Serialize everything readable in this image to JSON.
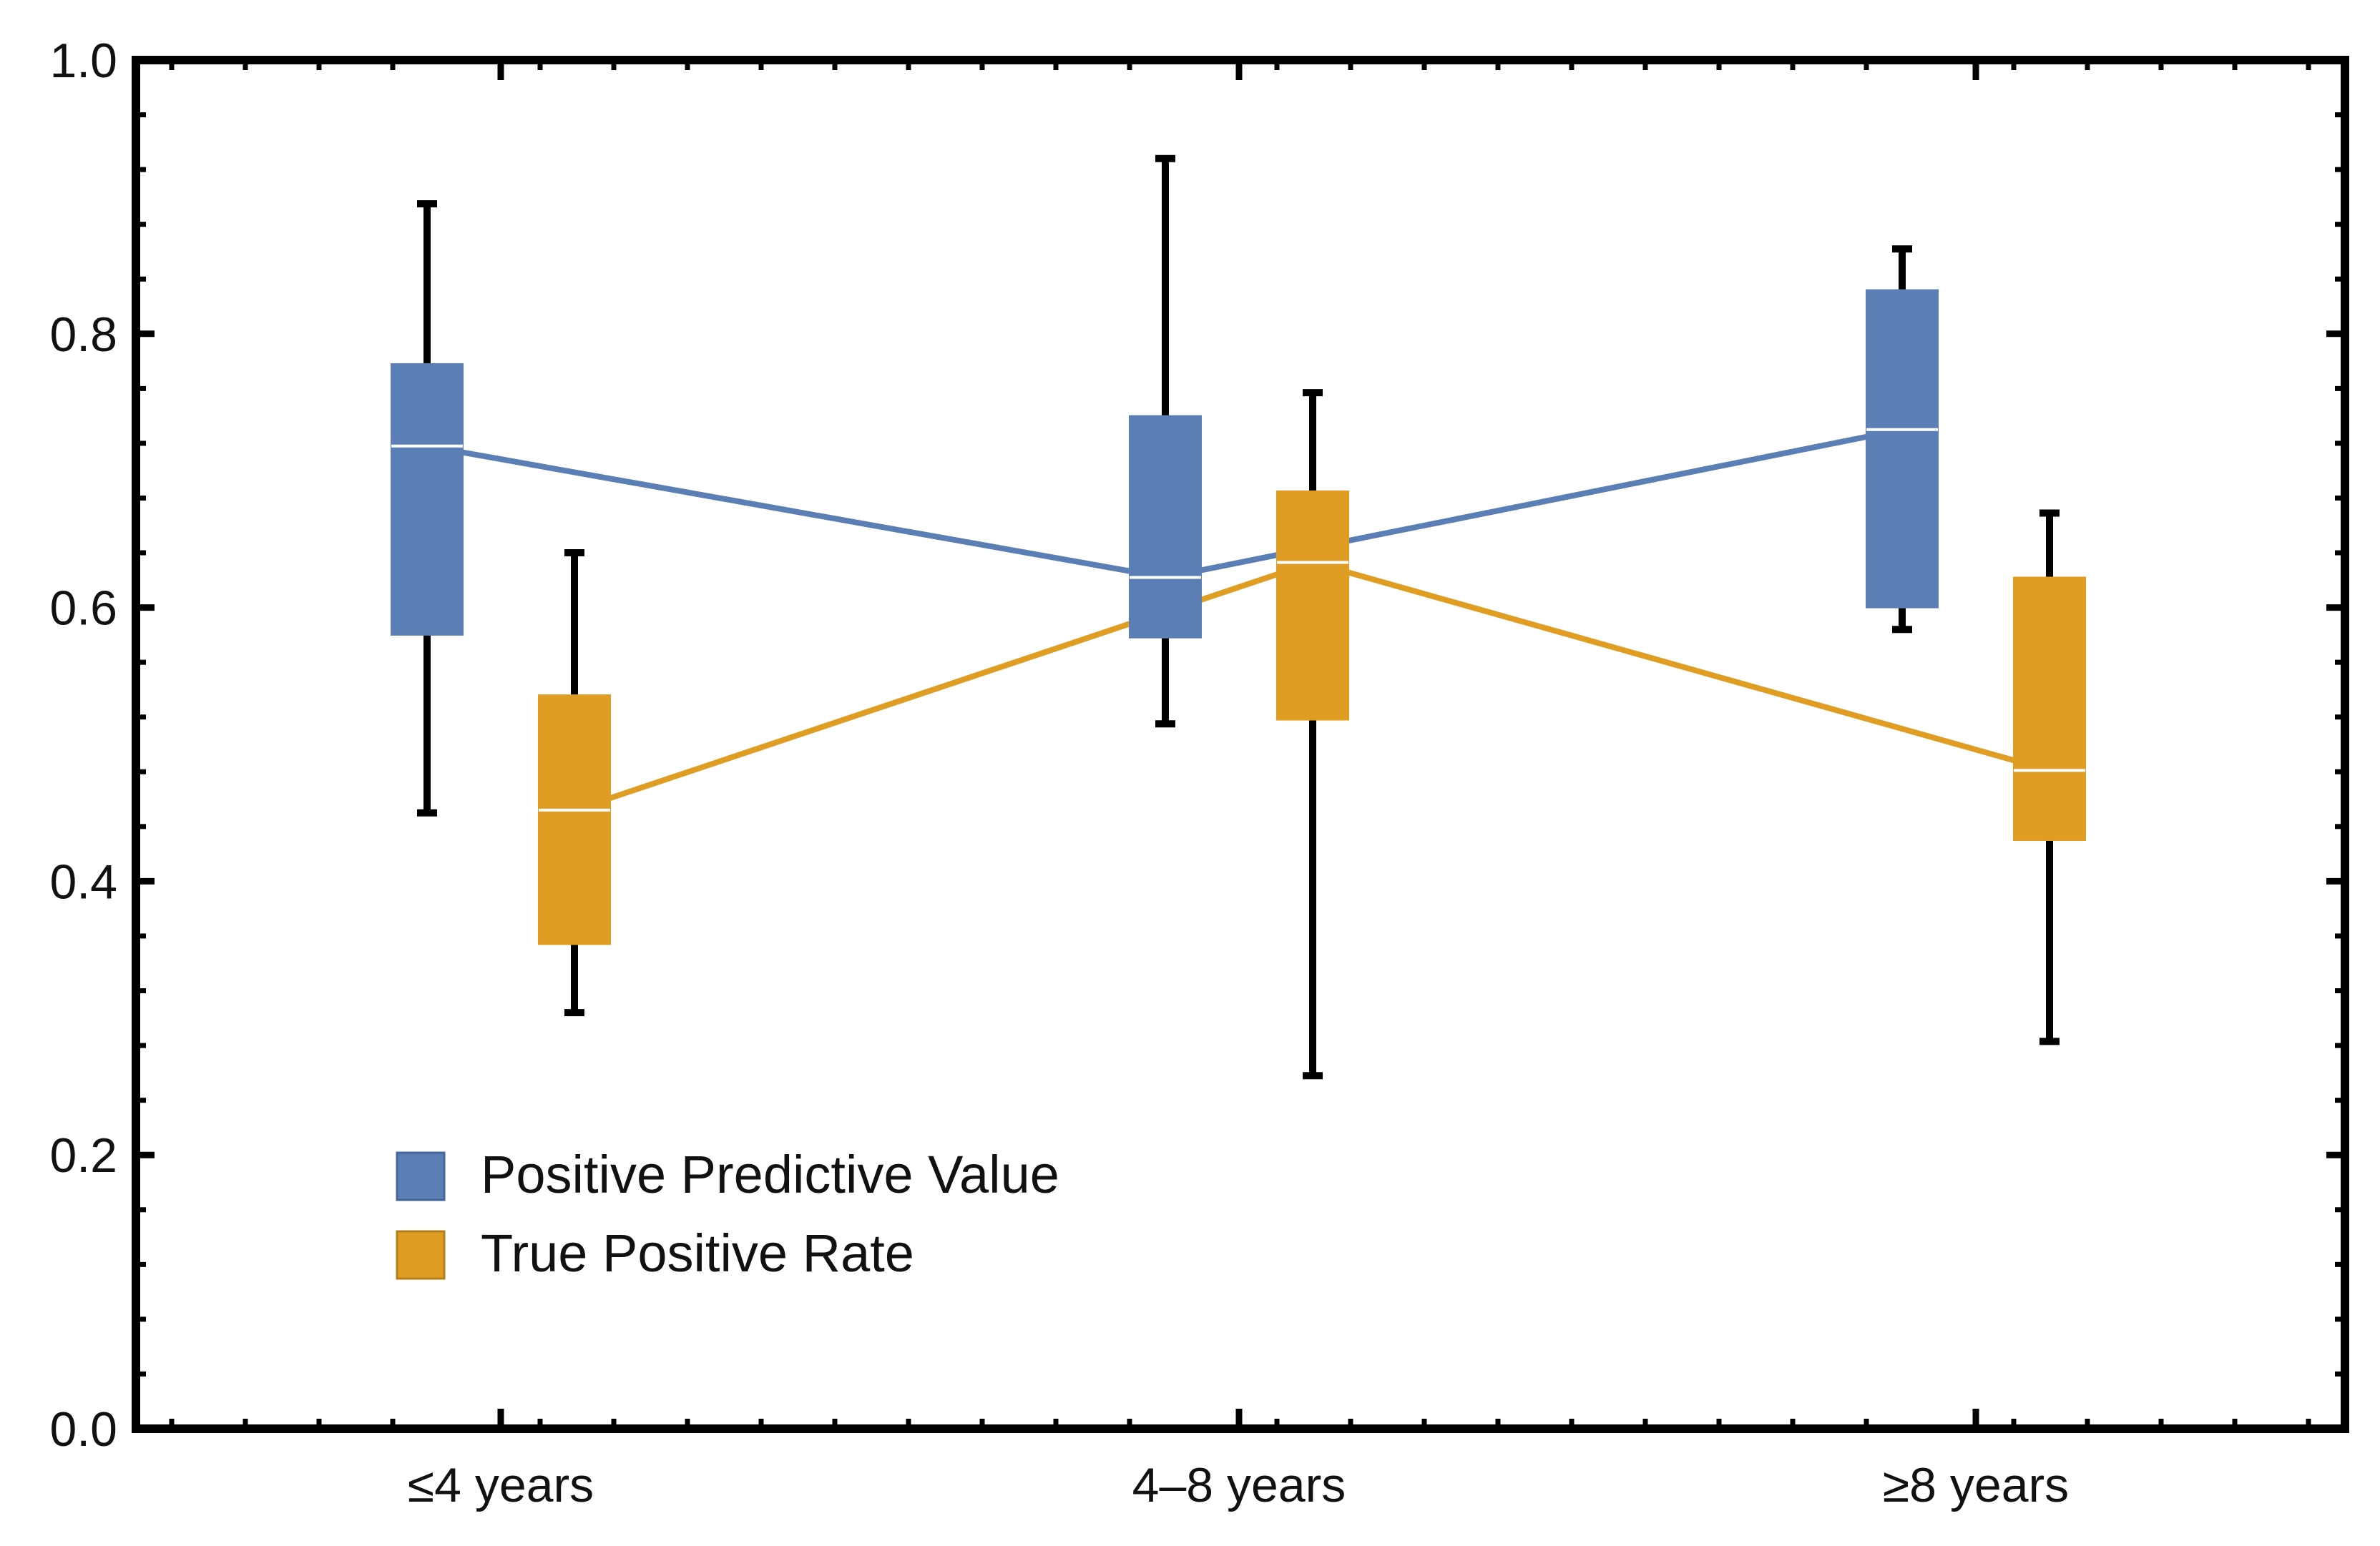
{
  "chart_data": {
    "type": "box",
    "title": "",
    "xlabel": "",
    "ylabel": "",
    "categories": [
      "≤4 years",
      "4–8 years",
      "≥8 years"
    ],
    "ylim": [
      0.0,
      1.0
    ],
    "yticks": [
      "0.0",
      "0.2",
      "0.4",
      "0.6",
      "0.8",
      "1.0"
    ],
    "grid": false,
    "legend_position": "bottom-left",
    "series": [
      {
        "name": "Positive Predictive Value",
        "color": "#5b7fb5",
        "boxes": [
          {
            "category": "≤4 years",
            "min": 0.45,
            "q1": 0.58,
            "median": 0.718,
            "q3": 0.778,
            "max": 0.895
          },
          {
            "category": "4–8 years",
            "min": 0.515,
            "q1": 0.578,
            "median": 0.622,
            "q3": 0.74,
            "max": 0.928
          },
          {
            "category": "≥8 years",
            "min": 0.584,
            "q1": 0.6,
            "median": 0.73,
            "q3": 0.832,
            "max": 0.862
          }
        ]
      },
      {
        "name": "True Positive Rate",
        "color": "#e09d24",
        "boxes": [
          {
            "category": "≤4 years",
            "min": 0.304,
            "q1": 0.354,
            "median": 0.452,
            "q3": 0.536,
            "max": 0.64
          },
          {
            "category": "4–8 years",
            "min": 0.258,
            "q1": 0.518,
            "median": 0.633,
            "q3": 0.685,
            "max": 0.757
          },
          {
            "category": "≥8 years",
            "min": 0.283,
            "q1": 0.43,
            "median": 0.481,
            "q3": 0.622,
            "max": 0.669
          }
        ]
      }
    ]
  }
}
